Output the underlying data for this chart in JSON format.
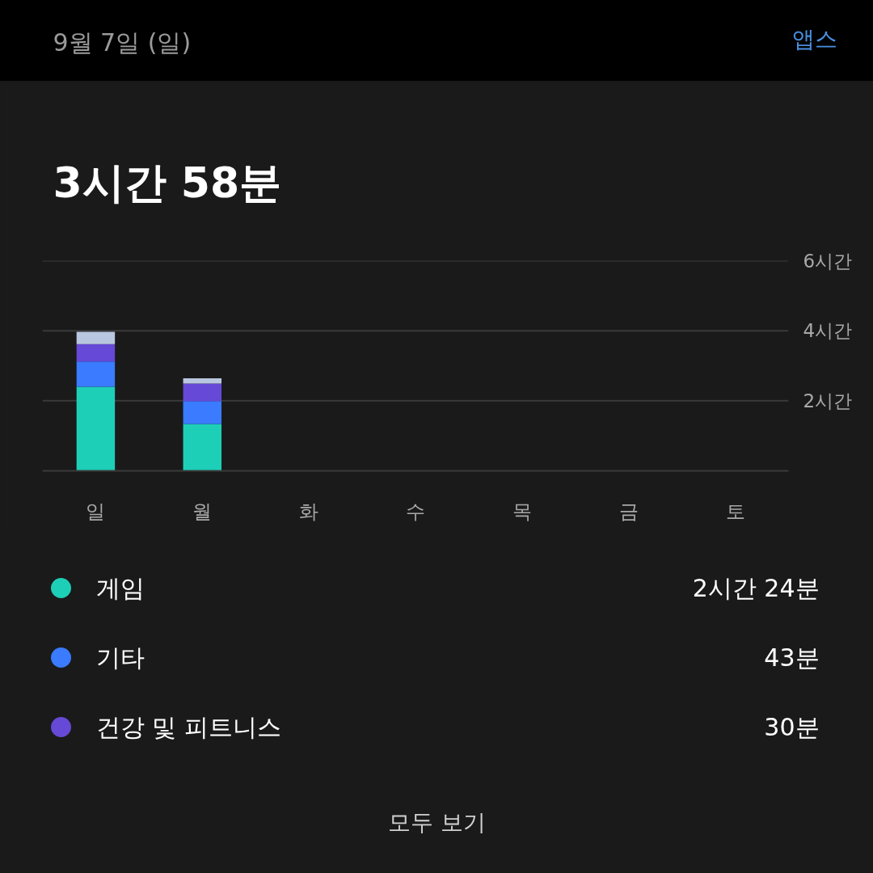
{
  "chart_data": {
    "type": "bar",
    "stacked": true,
    "title": "3시간 58분",
    "categories": [
      "일",
      "월",
      "화",
      "수",
      "목",
      "금",
      "토"
    ],
    "series": [
      {
        "name": "게임",
        "color": "#1ecfb8",
        "values": [
          2.4,
          1.34,
          null,
          null,
          null,
          null,
          null
        ]
      },
      {
        "name": "기타",
        "color": "#3a7bff",
        "values": [
          0.72,
          0.65,
          null,
          null,
          null,
          null,
          null
        ]
      },
      {
        "name": "건강 및 피트니스",
        "color": "#6649d6",
        "values": [
          0.5,
          0.5,
          null,
          null,
          null,
          null,
          null
        ]
      },
      {
        "color": "#b8c6e0",
        "values": [
          0.35,
          0.15,
          null,
          null,
          null,
          null,
          null
        ]
      }
    ],
    "ylim": [
      0,
      6
    ],
    "yticks": [
      {
        "value": 2,
        "label": "2시간"
      },
      {
        "value": 4,
        "label": "4시간"
      },
      {
        "value": 6,
        "label": "6시간"
      }
    ],
    "grid": "y",
    "legend": "bottom",
    "annotations": [
      "9월 7일 (일)",
      "앱스",
      "2시간 24분",
      "43분",
      "30분",
      "모두 보기"
    ]
  }
}
